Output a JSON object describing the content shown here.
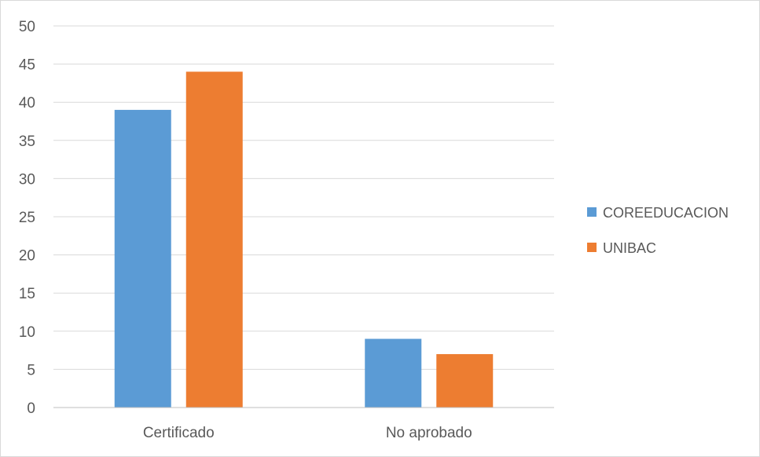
{
  "chart_data": {
    "type": "bar",
    "categories": [
      "Certificado",
      "No aprobado"
    ],
    "series": [
      {
        "name": "COREEDUCACION",
        "values": [
          39,
          9
        ],
        "color": "#5B9BD5"
      },
      {
        "name": "UNIBAC",
        "values": [
          44,
          7
        ],
        "color": "#ED7D31"
      }
    ],
    "ylim": [
      0,
      50
    ],
    "yticks": [
      0,
      5,
      10,
      15,
      20,
      25,
      30,
      35,
      40,
      45,
      50
    ],
    "grid": true,
    "legend_position": "right",
    "gridline_color": "#d9d9d9",
    "axis_color": "#bfbfbf"
  }
}
